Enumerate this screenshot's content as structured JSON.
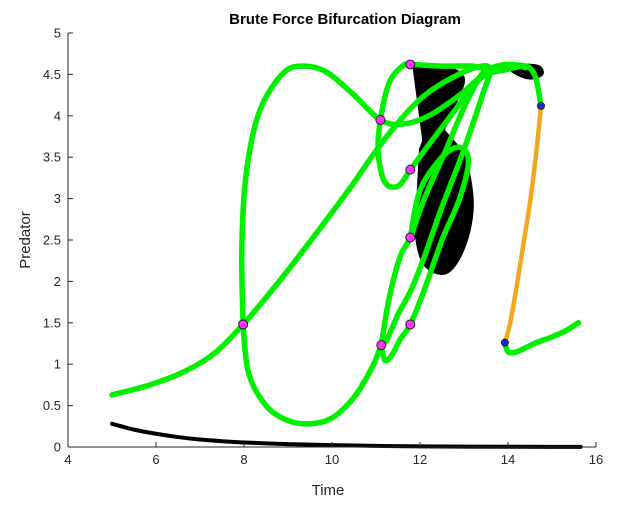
{
  "chart_data": {
    "type": "line",
    "title": "Brute Force Bifurcation Diagram",
    "xlabel": "Time",
    "ylabel": "Predator",
    "xlim": [
      4,
      16
    ],
    "ylim": [
      0,
      5
    ],
    "xticks": [
      4,
      6,
      8,
      10,
      12,
      14,
      16
    ],
    "yticks": [
      0,
      0.5,
      1,
      1.5,
      2,
      2.5,
      3,
      3.5,
      4,
      4.5,
      5
    ],
    "xtick_labels": [
      "4",
      "6",
      "8",
      "10",
      "12",
      "14",
      "16"
    ],
    "ytick_labels": [
      "0",
      "0.5",
      "1",
      "1.5",
      "2",
      "2.5",
      "3",
      "3.5",
      "4",
      "4.5",
      "5"
    ],
    "grid": false,
    "legend": "none",
    "series": [
      {
        "id": "decay",
        "color": "#000000",
        "points": [
          [
            5.0,
            0.28
          ],
          [
            5.5,
            0.21
          ],
          [
            6.0,
            0.16
          ],
          [
            6.5,
            0.12
          ],
          [
            7.0,
            0.09
          ],
          [
            7.5,
            0.07
          ],
          [
            8.0,
            0.055
          ],
          [
            9.0,
            0.035
          ],
          [
            10.0,
            0.022
          ],
          [
            11.0,
            0.013
          ],
          [
            12.0,
            0.008
          ],
          [
            13.0,
            0.005
          ],
          [
            14.0,
            0.003
          ],
          [
            15.0,
            0.002
          ],
          [
            15.65,
            0.0015
          ]
        ]
      },
      {
        "id": "orange-branch",
        "color": "#f0a91e",
        "points": [
          [
            13.93,
            1.26
          ],
          [
            14.05,
            1.5
          ],
          [
            14.2,
            1.95
          ],
          [
            14.35,
            2.45
          ],
          [
            14.5,
            2.95
          ],
          [
            14.62,
            3.45
          ],
          [
            14.7,
            3.85
          ],
          [
            14.75,
            4.12
          ]
        ]
      },
      {
        "id": "green-main",
        "color": "#00f000",
        "points": [
          [
            5.0,
            0.63
          ],
          [
            5.8,
            0.74
          ],
          [
            6.6,
            0.9
          ],
          [
            7.3,
            1.12
          ],
          [
            7.98,
            1.48
          ],
          [
            8.8,
            2.0
          ],
          [
            9.6,
            2.55
          ],
          [
            10.4,
            3.12
          ],
          [
            11.2,
            3.72
          ],
          [
            12.0,
            4.2
          ],
          [
            12.8,
            4.48
          ],
          [
            13.4,
            4.6
          ],
          [
            13.6,
            4.55
          ],
          [
            13.45,
            4.3
          ],
          [
            13.2,
            3.9
          ],
          [
            12.9,
            3.45
          ],
          [
            12.5,
            2.9
          ],
          [
            12.1,
            2.3
          ],
          [
            11.8,
            1.9
          ],
          [
            11.5,
            1.6
          ],
          [
            11.25,
            1.3
          ],
          [
            11.12,
            1.23
          ]
        ]
      },
      {
        "id": "green-upper-loop",
        "color": "#00f000",
        "points": [
          [
            7.98,
            1.48
          ],
          [
            7.95,
            2.4
          ],
          [
            8.05,
            3.3
          ],
          [
            8.35,
            4.05
          ],
          [
            8.9,
            4.52
          ],
          [
            9.4,
            4.6
          ],
          [
            9.9,
            4.52
          ],
          [
            10.5,
            4.25
          ],
          [
            11.1,
            3.95
          ],
          [
            11.6,
            3.9
          ],
          [
            12.2,
            4.0
          ],
          [
            12.9,
            4.25
          ],
          [
            13.6,
            4.55
          ],
          [
            14.3,
            4.61
          ],
          [
            14.6,
            4.5
          ],
          [
            14.75,
            4.12
          ]
        ]
      },
      {
        "id": "green-lower-loop",
        "color": "#00f000",
        "points": [
          [
            7.98,
            1.48
          ],
          [
            8.1,
            0.9
          ],
          [
            8.5,
            0.5
          ],
          [
            9.0,
            0.32
          ],
          [
            9.5,
            0.28
          ],
          [
            10.0,
            0.35
          ],
          [
            10.5,
            0.6
          ],
          [
            10.9,
            0.95
          ],
          [
            11.12,
            1.23
          ]
        ]
      },
      {
        "id": "green-loop-a",
        "color": "#00f000",
        "points": [
          [
            11.12,
            1.23
          ],
          [
            11.3,
            1.8
          ],
          [
            11.55,
            2.3
          ],
          [
            11.78,
            2.53
          ],
          [
            12.1,
            3.0
          ],
          [
            12.6,
            3.6
          ],
          [
            13.0,
            4.1
          ],
          [
            13.4,
            4.5
          ],
          [
            13.75,
            4.6
          ],
          [
            14.1,
            4.62
          ],
          [
            14.4,
            4.58
          ]
        ]
      },
      {
        "id": "green-loop-b",
        "color": "#00f000",
        "points": [
          [
            11.12,
            1.23
          ],
          [
            11.2,
            1.05
          ],
          [
            11.35,
            1.1
          ],
          [
            11.55,
            1.3
          ],
          [
            11.78,
            1.48
          ],
          [
            12.1,
            1.9
          ],
          [
            12.5,
            2.5
          ],
          [
            12.9,
            3.0
          ],
          [
            13.1,
            3.45
          ],
          [
            12.9,
            3.62
          ],
          [
            12.5,
            3.5
          ],
          [
            12.0,
            3.1
          ],
          [
            11.78,
            2.53
          ]
        ]
      },
      {
        "id": "green-loop-c",
        "color": "#00f000",
        "points": [
          [
            11.78,
            3.35
          ],
          [
            11.5,
            3.15
          ],
          [
            11.2,
            3.2
          ],
          [
            11.05,
            3.55
          ],
          [
            11.1,
            3.95
          ],
          [
            11.3,
            4.4
          ],
          [
            11.6,
            4.6
          ],
          [
            11.78,
            4.62
          ],
          [
            12.5,
            4.6
          ],
          [
            13.2,
            4.6
          ],
          [
            13.6,
            4.55
          ]
        ]
      },
      {
        "id": "green-loop-d",
        "color": "#00f000",
        "points": [
          [
            11.78,
            3.35
          ],
          [
            12.2,
            3.65
          ],
          [
            12.7,
            4.0
          ],
          [
            13.2,
            4.35
          ],
          [
            13.5,
            4.5
          ],
          [
            13.9,
            4.55
          ],
          [
            14.3,
            4.6
          ]
        ]
      },
      {
        "id": "green-tail",
        "color": "#00f000",
        "points": [
          [
            13.93,
            1.26
          ],
          [
            14.0,
            1.15
          ],
          [
            14.2,
            1.15
          ],
          [
            14.6,
            1.25
          ],
          [
            15.0,
            1.33
          ],
          [
            15.3,
            1.4
          ],
          [
            15.6,
            1.5
          ]
        ]
      }
    ],
    "shaded_regions": [
      {
        "id": "chaotic-band-upper",
        "color": "#000000",
        "points": [
          [
            11.85,
            4.6
          ],
          [
            12.2,
            4.62
          ],
          [
            12.7,
            4.58
          ],
          [
            13.0,
            4.45
          ],
          [
            12.85,
            4.2
          ],
          [
            12.6,
            3.9
          ],
          [
            12.35,
            3.6
          ],
          [
            12.15,
            3.45
          ],
          [
            12.05,
            3.8
          ],
          [
            11.95,
            4.2
          ]
        ]
      },
      {
        "id": "chaotic-band-lower",
        "color": "#000000",
        "points": [
          [
            12.0,
            3.6
          ],
          [
            12.3,
            3.9
          ],
          [
            12.75,
            3.7
          ],
          [
            13.05,
            3.45
          ],
          [
            13.2,
            2.9
          ],
          [
            13.0,
            2.4
          ],
          [
            12.6,
            2.1
          ],
          [
            12.1,
            2.2
          ],
          [
            11.9,
            2.6
          ],
          [
            11.95,
            3.1
          ]
        ]
      },
      {
        "id": "chaotic-band-right",
        "color": "#000000",
        "points": [
          [
            13.95,
            4.6
          ],
          [
            14.3,
            4.62
          ],
          [
            14.7,
            4.6
          ],
          [
            14.78,
            4.5
          ],
          [
            14.5,
            4.45
          ],
          [
            14.2,
            4.5
          ]
        ]
      }
    ],
    "markers": [
      {
        "x": 7.98,
        "y": 1.48,
        "color": "#ff33ff"
      },
      {
        "x": 11.12,
        "y": 1.23,
        "color": "#ff33ff"
      },
      {
        "x": 11.78,
        "y": 1.48,
        "color": "#ff33ff"
      },
      {
        "x": 11.78,
        "y": 2.53,
        "color": "#ff33ff"
      },
      {
        "x": 11.78,
        "y": 3.35,
        "color": "#ff33ff"
      },
      {
        "x": 11.1,
        "y": 3.95,
        "color": "#ff33ff"
      },
      {
        "x": 11.78,
        "y": 4.62,
        "color": "#ff33ff"
      },
      {
        "x": 13.93,
        "y": 1.26,
        "color": "#1030d0"
      },
      {
        "x": 14.75,
        "y": 4.12,
        "color": "#1030d0"
      }
    ]
  }
}
